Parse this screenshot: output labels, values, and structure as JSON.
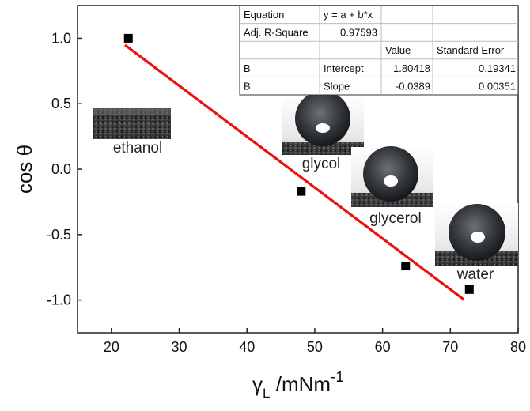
{
  "chart_data": {
    "type": "scatter",
    "xlabel": "γ",
    "xlabel_sub": "L",
    "xlabel_unit": " /mNm",
    "xlabel_sup": "-1",
    "ylabel": "cos θ",
    "xlim": [
      15,
      80
    ],
    "ylim": [
      -1.25,
      1.25
    ],
    "xticks": [
      20,
      30,
      40,
      50,
      60,
      70,
      80
    ],
    "yticks": [
      -1.0,
      -0.5,
      0.0,
      0.5,
      1.0
    ],
    "ytick_labels": [
      "-1.0",
      "-0.5",
      "0.0",
      "0.5",
      "1.0"
    ],
    "series": [
      {
        "marker": "square",
        "color": "#000000",
        "points": [
          {
            "x": 22.5,
            "y": 1.0
          },
          {
            "x": 48.0,
            "y": -0.17
          },
          {
            "x": 63.4,
            "y": -0.74
          },
          {
            "x": 72.8,
            "y": -0.92
          }
        ]
      }
    ],
    "fit": {
      "color": "#e8130f",
      "intercept": 1.80418,
      "slope": -0.0389,
      "x_range": [
        22,
        72
      ]
    },
    "photo_labels": [
      "ethanol",
      "glycol",
      "glycerol",
      "water"
    ],
    "fit_table": {
      "rows": [
        [
          "Equation",
          "y = a + b*x",
          "",
          ""
        ],
        [
          "Adj. R-Square",
          "0.97593",
          "",
          ""
        ],
        [
          "",
          "",
          "Value",
          "Standard Error"
        ],
        [
          "B",
          "Intercept",
          "1.80418",
          "0.19341"
        ],
        [
          "B",
          "Slope",
          "-0.0389",
          "0.00351"
        ]
      ]
    }
  }
}
